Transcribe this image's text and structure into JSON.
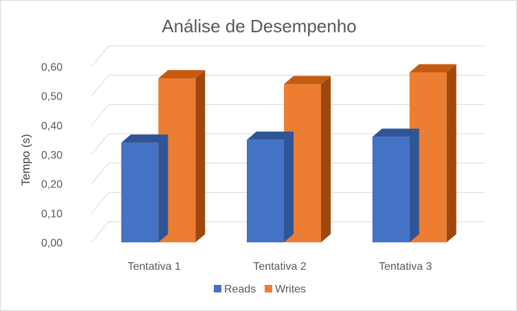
{
  "chart_data": {
    "type": "bar",
    "style": "3d-clustered-column",
    "title": "Análise de Desempenho",
    "xlabel": "",
    "ylabel": "Tempo (s)",
    "categories": [
      "Tentativa 1",
      "Tentativa 2",
      "Tentativa 3"
    ],
    "series": [
      {
        "name": "Reads",
        "values": [
          0.34,
          0.35,
          0.36
        ],
        "color": "#4472C4",
        "top_color": "#2F5597"
      },
      {
        "name": "Writes",
        "values": [
          0.56,
          0.54,
          0.58
        ],
        "color": "#ED7D31",
        "top_color": "#C55A11",
        "side_color": "#9E480E"
      }
    ],
    "ylim": [
      0,
      0.6
    ],
    "yticks": [
      "0,00",
      "0,10",
      "0,20",
      "0,30",
      "0,40",
      "0,50",
      "0,60"
    ],
    "grid": true,
    "legend": "bottom"
  }
}
